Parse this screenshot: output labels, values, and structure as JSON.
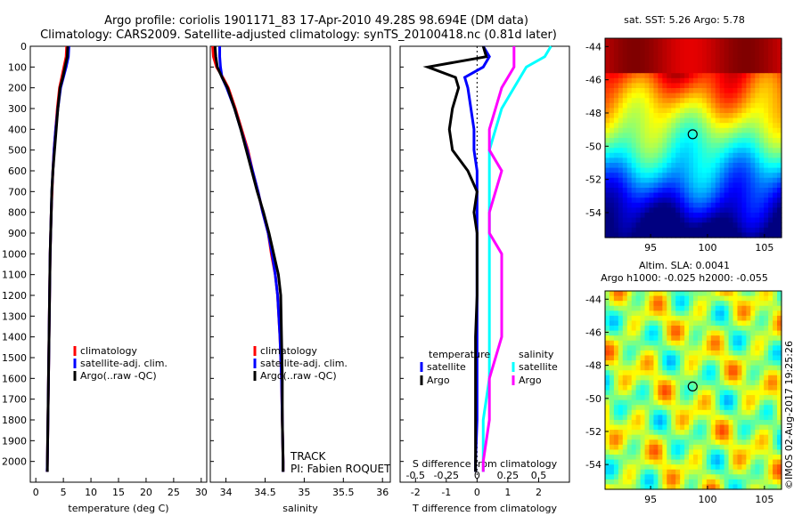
{
  "header": {
    "title_line1": "Argo profile: coriolis 1901171_83 17-Apr-2010 49.28S 98.694E (DM data)",
    "title_line2": "Climatology: CARS2009. Satellite-adjusted climatology: synTS_20100418.nc (0.81d later)"
  },
  "colors": {
    "climatology": "#ff0000",
    "satellite": "#0000ff",
    "argo": "#000000",
    "sat_salinity": "#00ffff",
    "argo_salinity": "#ff00ff"
  },
  "chart_data": [
    {
      "type": "line",
      "title": "",
      "xlabel": "temperature (deg C)",
      "ylabel": "",
      "xlim": [
        -1,
        31
      ],
      "ylim": [
        2100,
        0
      ],
      "xticks": [
        "0",
        "5",
        "10",
        "15",
        "20",
        "25",
        "30"
      ],
      "yticks": [
        "0",
        "100",
        "200",
        "300",
        "400",
        "500",
        "600",
        "700",
        "800",
        "900",
        "1000",
        "1100",
        "1200",
        "1300",
        "1400",
        "1500",
        "1600",
        "1700",
        "1800",
        "1900",
        "2000"
      ],
      "depth": [
        0,
        50,
        100,
        150,
        200,
        300,
        400,
        500,
        600,
        700,
        800,
        900,
        1000,
        1200,
        1400,
        1600,
        1800,
        2000,
        2050
      ],
      "series": [
        {
          "name": "climatology",
          "color": "#ff0000",
          "values": [
            5.6,
            5.5,
            5.1,
            4.7,
            4.3,
            3.9,
            3.6,
            3.3,
            3.1,
            2.95,
            2.8,
            2.7,
            2.6,
            2.5,
            2.4,
            2.3,
            2.2,
            2.1,
            2.05
          ]
        },
        {
          "name": "satellite-adj. clim.",
          "color": "#0000ff",
          "values": [
            6.0,
            5.9,
            5.5,
            5.0,
            4.5,
            4.0,
            3.6,
            3.3,
            3.1,
            2.9,
            2.8,
            2.7,
            2.6,
            2.5,
            2.4,
            2.3,
            2.2,
            2.1,
            2.05
          ]
        },
        {
          "name": "Argo(..raw -QC)",
          "color": "#000000",
          "values": [
            5.8,
            5.7,
            5.3,
            4.9,
            4.4,
            4.0,
            3.7,
            3.4,
            3.1,
            2.9,
            2.8,
            2.7,
            2.6,
            2.5,
            2.4,
            2.3,
            2.2,
            2.1,
            2.1
          ]
        }
      ],
      "legend": [
        "climatology",
        "satellite-adj. clim.",
        "Argo(..raw -QC)"
      ],
      "legend_position": "lower-center"
    },
    {
      "type": "line",
      "xlabel": "salinity",
      "xlim": [
        33.8,
        36.1
      ],
      "ylim": [
        2100,
        0
      ],
      "xticks": [
        "34",
        "34.5",
        "35",
        "35.5",
        "36"
      ],
      "depth": [
        0,
        50,
        100,
        150,
        200,
        300,
        400,
        500,
        600,
        700,
        800,
        900,
        1000,
        1100,
        1200,
        1400,
        1600,
        1800,
        2000,
        2050
      ],
      "series": [
        {
          "name": "climatology",
          "color": "#ff0000",
          "values": [
            33.83,
            33.84,
            33.88,
            33.96,
            34.03,
            34.12,
            34.2,
            34.28,
            34.34,
            34.41,
            34.47,
            34.54,
            34.58,
            34.63,
            34.66,
            34.69,
            34.71,
            34.72,
            34.73,
            34.73
          ]
        },
        {
          "name": "satellite-adj. clim.",
          "color": "#0000ff",
          "values": [
            33.92,
            33.92,
            33.93,
            33.95,
            34.01,
            34.11,
            34.19,
            34.27,
            34.34,
            34.41,
            34.47,
            34.54,
            34.59,
            34.63,
            34.66,
            34.69,
            34.71,
            34.72,
            34.73,
            34.73
          ]
        },
        {
          "name": "Argo(..raw -QC)",
          "color": "#000000",
          "values": [
            33.86,
            33.87,
            33.89,
            33.95,
            34.02,
            34.11,
            34.19,
            34.26,
            34.33,
            34.4,
            34.48,
            34.55,
            34.61,
            34.67,
            34.7,
            34.71,
            34.72,
            34.72,
            34.73,
            34.73
          ]
        }
      ],
      "legend": [
        "climatology",
        "satellite-adj. clim.",
        "Argo(..raw -QC)"
      ],
      "annotations": [
        "TRACK",
        "PI: Fabien ROQUET"
      ]
    },
    {
      "type": "line",
      "xlabel": "T difference from climatology",
      "xlabel_top": "S difference from climatology",
      "xlim": [
        -2.5,
        3.0
      ],
      "ylim": [
        2100,
        0
      ],
      "xticks": [
        "-2",
        "-1",
        "0",
        "1",
        "2"
      ],
      "xticks_top": [
        "-0.5",
        "-0.25",
        "0",
        "0.25",
        "0.5"
      ],
      "depth": [
        0,
        50,
        100,
        150,
        200,
        300,
        400,
        500,
        600,
        700,
        800,
        900,
        1000,
        1200,
        1400,
        1600,
        1800,
        2000,
        2050
      ],
      "series": [
        {
          "name": "temperature satellite",
          "color": "#0000ff",
          "values": [
            0.2,
            0.4,
            0.2,
            -0.4,
            -0.3,
            -0.2,
            -0.1,
            -0.1,
            0.0,
            0.0,
            0.0,
            0.0,
            0.0,
            0.0,
            0.0,
            0.0,
            0.0,
            -0.05,
            -0.05
          ]
        },
        {
          "name": "temperature Argo",
          "color": "#000000",
          "values": [
            0.2,
            0.3,
            -1.6,
            -0.7,
            -0.6,
            -0.8,
            -0.9,
            -0.8,
            -0.3,
            0.0,
            -0.1,
            0.0,
            0.0,
            0.0,
            -0.05,
            -0.05,
            -0.05,
            -0.05,
            -0.05
          ]
        },
        {
          "name": "salinity satellite",
          "color": "#00ffff",
          "values": [
            0.6,
            0.55,
            0.4,
            0.35,
            0.3,
            0.2,
            0.15,
            0.1,
            0.1,
            0.1,
            0.1,
            0.1,
            0.1,
            0.1,
            0.1,
            0.1,
            0.05,
            0.05,
            0.05
          ]
        },
        {
          "name": "salinity Argo",
          "color": "#ff00ff",
          "values": [
            0.3,
            0.3,
            0.3,
            0.25,
            0.2,
            0.15,
            0.1,
            0.1,
            0.2,
            0.15,
            0.1,
            0.1,
            0.2,
            0.2,
            0.2,
            0.1,
            0.1,
            0.05,
            0.05
          ]
        }
      ],
      "legend_titles": [
        "temperature",
        "salinity"
      ],
      "legend": [
        "satellite",
        "Argo",
        "satellite",
        "Argo"
      ]
    },
    {
      "type": "heatmap",
      "title": "sat. SST: 5.26  Argo: 5.78",
      "xlim": [
        91,
        106.5
      ],
      "ylim": [
        -55.5,
        -43.5
      ],
      "xticks": [
        "95",
        "100",
        "105"
      ],
      "yticks": [
        "-44",
        "-46",
        "-48",
        "-50",
        "-52",
        "-54"
      ],
      "marker": {
        "lon": 98.694,
        "lat": -49.28
      }
    },
    {
      "type": "heatmap",
      "title": "Altim. SLA: 0.0041",
      "subtitle": "Argo h1000: -0.025 h2000: -0.055",
      "xlim": [
        91,
        106.5
      ],
      "ylim": [
        -55.5,
        -43.5
      ],
      "xticks": [
        "95",
        "100",
        "105"
      ],
      "yticks": [
        "-44",
        "-46",
        "-48",
        "-50",
        "-52",
        "-54"
      ],
      "marker": {
        "lon": 98.694,
        "lat": -49.28
      }
    }
  ],
  "footer": {
    "timestamp": "©IMOS 02-Aug-2017 19:25:26"
  }
}
